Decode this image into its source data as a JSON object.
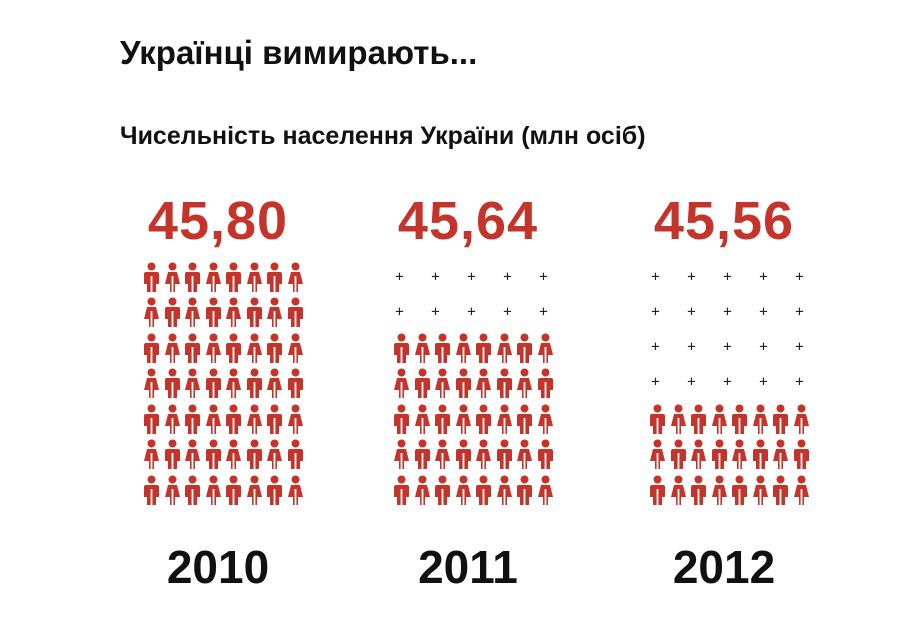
{
  "title": "Українці вимирають...",
  "subtitle": "Чисельність населення України (млн осіб)",
  "colors": {
    "accent": "#c4342a",
    "text": "#111111"
  },
  "icons": {
    "filled": "person-icon",
    "empty": "plus-icon"
  },
  "grid": {
    "rows": 7,
    "people_per_row": 8,
    "plus_per_row": 5
  },
  "chart_data": {
    "type": "bar",
    "title": "Чисельність населення України (млн осіб)",
    "categories": [
      "2010",
      "2011",
      "2012"
    ],
    "values": [
      45.8,
      45.64,
      45.56
    ],
    "value_labels": [
      "45,80",
      "45,64",
      "45,56"
    ],
    "filled_rows": [
      7,
      5,
      3
    ],
    "empty_rows": [
      0,
      2,
      4
    ]
  }
}
